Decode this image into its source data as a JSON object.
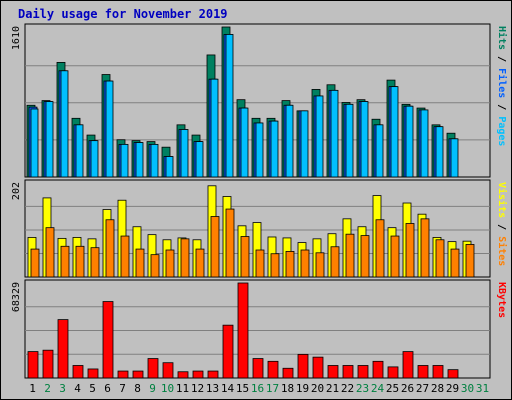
{
  "title": "Daily usage for November 2019",
  "colors": {
    "pages": "#00c0ff",
    "files": "#0060ff",
    "hits": "#008060",
    "visits": "#ffff00",
    "sites": "#ff8000",
    "kbytes": "#ff0000",
    "weekday": "#000000",
    "weekend": "#008040"
  },
  "chart_data": [
    {
      "type": "bar",
      "panel": "hits",
      "max_label": "1610",
      "right_labels": [
        "Pages",
        "Files",
        "Hits"
      ],
      "categories": [
        "1",
        "2",
        "3",
        "4",
        "5",
        "6",
        "7",
        "8",
        "9",
        "10",
        "11",
        "12",
        "13",
        "14",
        "15",
        "16",
        "17",
        "18",
        "19",
        "20",
        "21",
        "22",
        "23",
        "24",
        "25",
        "26",
        "27",
        "28",
        "29",
        "30",
        "31"
      ],
      "series": [
        {
          "name": "Hits",
          "values": [
            770,
            820,
            1230,
            630,
            450,
            1100,
            400,
            390,
            380,
            320,
            560,
            450,
            1310,
            1610,
            830,
            630,
            630,
            820,
            710,
            940,
            990,
            800,
            830,
            620,
            1040,
            780,
            740,
            560,
            470,
            0,
            0
          ]
        },
        {
          "name": "Files",
          "values": [
            750,
            810,
            1140,
            560,
            390,
            1030,
            350,
            370,
            350,
            220,
            510,
            380,
            1050,
            1530,
            740,
            580,
            600,
            770,
            710,
            870,
            930,
            780,
            810,
            560,
            970,
            760,
            720,
            540,
            410,
            0,
            0
          ]
        },
        {
          "name": "Pages",
          "values": [
            730,
            810,
            1140,
            560,
            390,
            1030,
            350,
            370,
            350,
            220,
            510,
            380,
            1050,
            1530,
            740,
            580,
            600,
            770,
            710,
            870,
            930,
            780,
            810,
            560,
            970,
            760,
            720,
            540,
            410,
            0,
            0
          ]
        }
      ],
      "ylim": [
        0,
        1610
      ]
    },
    {
      "type": "bar",
      "panel": "visits",
      "max_label": "202",
      "right_labels": [
        "Sites",
        "Visits"
      ],
      "categories": [
        "1",
        "2",
        "3",
        "4",
        "5",
        "6",
        "7",
        "8",
        "9",
        "10",
        "11",
        "12",
        "13",
        "14",
        "15",
        "16",
        "17",
        "18",
        "19",
        "20",
        "21",
        "22",
        "23",
        "24",
        "25",
        "26",
        "27",
        "28",
        "29",
        "30",
        "31"
      ],
      "series": [
        {
          "name": "Visits",
          "values": [
            85,
            170,
            83,
            85,
            82,
            145,
            165,
            108,
            91,
            80,
            84,
            80,
            196,
            173,
            110,
            117,
            86,
            84,
            74,
            82,
            93,
            125,
            108,
            175,
            106,
            159,
            135,
            85,
            76,
            77,
            0
          ]
        },
        {
          "name": "Sites",
          "values": [
            60,
            106,
            66,
            66,
            63,
            123,
            88,
            60,
            48,
            58,
            82,
            60,
            130,
            146,
            87,
            58,
            50,
            55,
            58,
            52,
            65,
            92,
            89,
            123,
            88,
            115,
            125,
            80,
            60,
            70,
            0
          ]
        }
      ],
      "ylim": [
        0,
        202
      ]
    },
    {
      "type": "bar",
      "panel": "kbytes",
      "max_label": "68329",
      "right_labels": [
        "KBytes"
      ],
      "categories": [
        "1",
        "2",
        "3",
        "4",
        "5",
        "6",
        "7",
        "8",
        "9",
        "10",
        "11",
        "12",
        "13",
        "14",
        "15",
        "16",
        "17",
        "18",
        "19",
        "20",
        "21",
        "22",
        "23",
        "24",
        "25",
        "26",
        "27",
        "28",
        "29",
        "30",
        "31"
      ],
      "series": [
        {
          "name": "KBytes",
          "values": [
            19000,
            20000,
            42000,
            9000,
            6500,
            55000,
            5000,
            5000,
            14000,
            11000,
            4500,
            5000,
            5000,
            38000,
            68329,
            14000,
            12000,
            7000,
            17000,
            15000,
            9000,
            9000,
            9000,
            12000,
            8000,
            19000,
            9000,
            9000,
            6000,
            0,
            0
          ]
        }
      ],
      "ylim": [
        0,
        68329
      ]
    }
  ],
  "weekends": [
    "2",
    "3",
    "9",
    "10",
    "16",
    "17",
    "23",
    "24",
    "30",
    "31"
  ]
}
